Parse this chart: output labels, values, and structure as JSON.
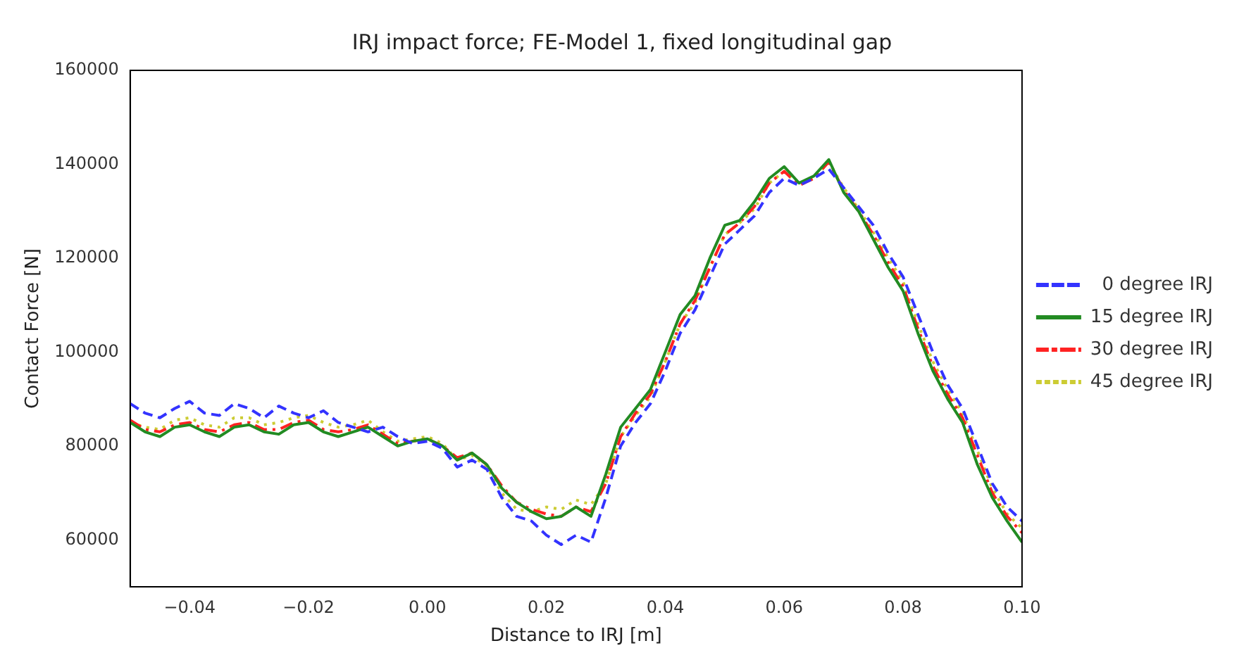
{
  "chart_data": {
    "type": "line",
    "title": "IRJ impact force; FE-Model 1, fixed longitudinal gap",
    "xlabel": "Distance to IRJ [m]",
    "ylabel": "Contact Force [N]",
    "x": [
      -0.05,
      -0.0475,
      -0.045,
      -0.0425,
      -0.04,
      -0.0375,
      -0.035,
      -0.0325,
      -0.03,
      -0.0275,
      -0.025,
      -0.0225,
      -0.02,
      -0.0175,
      -0.015,
      -0.0125,
      -0.01,
      -0.0075,
      -0.005,
      -0.0025,
      0,
      0.0025,
      0.005,
      0.0075,
      0.01,
      0.0125,
      0.015,
      0.0175,
      0.02,
      0.0225,
      0.025,
      0.0275,
      0.03,
      0.0325,
      0.035,
      0.0375,
      0.04,
      0.0425,
      0.045,
      0.0475,
      0.05,
      0.0525,
      0.055,
      0.0575,
      0.06,
      0.0625,
      0.065,
      0.0675,
      0.07,
      0.0725,
      0.075,
      0.0775,
      0.08,
      0.0825,
      0.085,
      0.0875,
      0.09,
      0.0925,
      0.095,
      0.0975,
      0.1
    ],
    "series": [
      {
        "name": "  0 degree IRJ",
        "color": "#3333ff",
        "line_style": "dashed",
        "values": [
          89000,
          87000,
          86000,
          88000,
          89500,
          87000,
          86500,
          89000,
          88000,
          86000,
          88500,
          87000,
          86000,
          87500,
          85000,
          84000,
          83000,
          84000,
          82000,
          80500,
          81000,
          79500,
          75500,
          77000,
          75000,
          69000,
          65000,
          64000,
          61000,
          59000,
          61000,
          59500,
          69000,
          80000,
          85000,
          89000,
          96000,
          104000,
          109000,
          116000,
          123000,
          126000,
          129000,
          134000,
          137000,
          135500,
          137000,
          139000,
          135000,
          131000,
          127000,
          121000,
          116000,
          108000,
          100000,
          93000,
          88000,
          80000,
          72000,
          67000,
          64000
        ]
      },
      {
        "name": "15 degree IRJ",
        "color": "#228b22",
        "line_style": "solid",
        "values": [
          85000,
          83000,
          82000,
          84000,
          84500,
          83000,
          82000,
          84000,
          84500,
          83000,
          82500,
          84500,
          85000,
          83000,
          82000,
          83000,
          84000,
          82000,
          80000,
          81000,
          81500,
          80000,
          77000,
          78500,
          76000,
          71000,
          68000,
          66000,
          64500,
          65000,
          67000,
          65000,
          74000,
          84000,
          88000,
          92000,
          100000,
          108000,
          112000,
          120000,
          127000,
          128000,
          132000,
          137000,
          139500,
          136000,
          137500,
          141000,
          134000,
          130000,
          124000,
          118000,
          113000,
          104000,
          96000,
          90000,
          85000,
          76000,
          69000,
          64000,
          59500
        ]
      },
      {
        "name": "30 degree IRJ",
        "color": "#ff2222",
        "line_style": "dashdot",
        "values": [
          85500,
          83500,
          83000,
          84500,
          85000,
          83500,
          83000,
          84500,
          85000,
          83500,
          83500,
          85000,
          85500,
          83500,
          83000,
          83500,
          84500,
          82500,
          80500,
          81000,
          81500,
          80000,
          77500,
          78500,
          76000,
          71500,
          68000,
          66500,
          65500,
          65000,
          67000,
          66000,
          72000,
          82000,
          87000,
          91000,
          98000,
          106000,
          111000,
          118000,
          125000,
          127500,
          131000,
          136000,
          138500,
          135500,
          137000,
          140500,
          134500,
          130000,
          125000,
          119000,
          114000,
          105000,
          97000,
          91000,
          86000,
          78000,
          70000,
          65000,
          61500
        ]
      },
      {
        "name": "45 degree IRJ",
        "color": "#cccc33",
        "line_style": "dotted",
        "values": [
          85000,
          84000,
          83500,
          85500,
          86000,
          84500,
          84000,
          86000,
          86000,
          84500,
          85000,
          86000,
          86500,
          85000,
          84000,
          84500,
          85500,
          83000,
          81000,
          81500,
          82000,
          80500,
          77000,
          78000,
          75500,
          70000,
          66500,
          66000,
          67000,
          66500,
          68500,
          67500,
          72000,
          82000,
          86500,
          90500,
          98000,
          106000,
          110500,
          118000,
          125000,
          127500,
          130500,
          136000,
          138500,
          135500,
          137000,
          140500,
          135000,
          130500,
          125500,
          120000,
          115000,
          106000,
          98000,
          92000,
          87000,
          79000,
          71000,
          65500,
          62500
        ]
      }
    ],
    "xlim": [
      -0.05,
      0.1
    ],
    "xticks": [
      {
        "value": -0.04,
        "label": "−0.04"
      },
      {
        "value": -0.02,
        "label": "−0.02"
      },
      {
        "value": 0,
        "label": "0.00"
      },
      {
        "value": 0.02,
        "label": "0.02"
      },
      {
        "value": 0.04,
        "label": "0.04"
      },
      {
        "value": 0.06,
        "label": "0.06"
      },
      {
        "value": 0.08,
        "label": "0.08"
      },
      {
        "value": 0.1,
        "label": "0.10"
      }
    ],
    "ylim": [
      50000,
      160000
    ],
    "yticks": [
      60000,
      80000,
      100000,
      120000,
      140000,
      160000
    ],
    "grid": false,
    "legend": "right",
    "marker": "none"
  }
}
